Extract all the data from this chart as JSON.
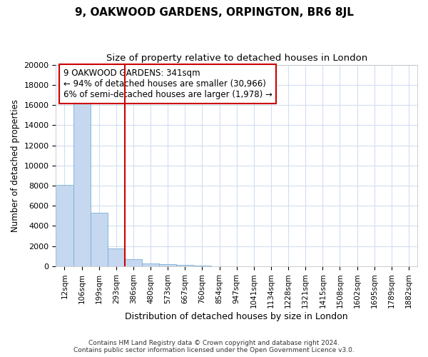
{
  "title": "9, OAKWOOD GARDENS, ORPINGTON, BR6 8JL",
  "subtitle": "Size of property relative to detached houses in London",
  "xlabel": "Distribution of detached houses by size in London",
  "ylabel": "Number of detached properties",
  "bar_labels": [
    "12sqm",
    "106sqm",
    "199sqm",
    "293sqm",
    "386sqm",
    "480sqm",
    "573sqm",
    "667sqm",
    "760sqm",
    "854sqm",
    "947sqm",
    "1041sqm",
    "1134sqm",
    "1228sqm",
    "1321sqm",
    "1415sqm",
    "1508sqm",
    "1602sqm",
    "1695sqm",
    "1789sqm",
    "1882sqm"
  ],
  "bar_values": [
    8100,
    16600,
    5300,
    1800,
    700,
    300,
    220,
    150,
    100,
    0,
    0,
    0,
    0,
    0,
    0,
    0,
    0,
    0,
    0,
    0,
    0
  ],
  "bar_color": "#c5d8f0",
  "bar_edge_color": "#7aadd4",
  "vline_x_index": 3.5,
  "vline_color": "#cc0000",
  "annotation_text": "9 OAKWOOD GARDENS: 341sqm\n← 94% of detached houses are smaller (30,966)\n6% of semi-detached houses are larger (1,978) →",
  "annotation_box_color": "white",
  "annotation_box_edge": "#cc0000",
  "ylim": [
    0,
    20000
  ],
  "yticks": [
    0,
    2000,
    4000,
    6000,
    8000,
    10000,
    12000,
    14000,
    16000,
    18000,
    20000
  ],
  "footer_line1": "Contains HM Land Registry data © Crown copyright and database right 2024.",
  "footer_line2": "Contains public sector information licensed under the Open Government Licence v3.0.",
  "background_color": "#ffffff",
  "grid_color": "#d0dff0"
}
